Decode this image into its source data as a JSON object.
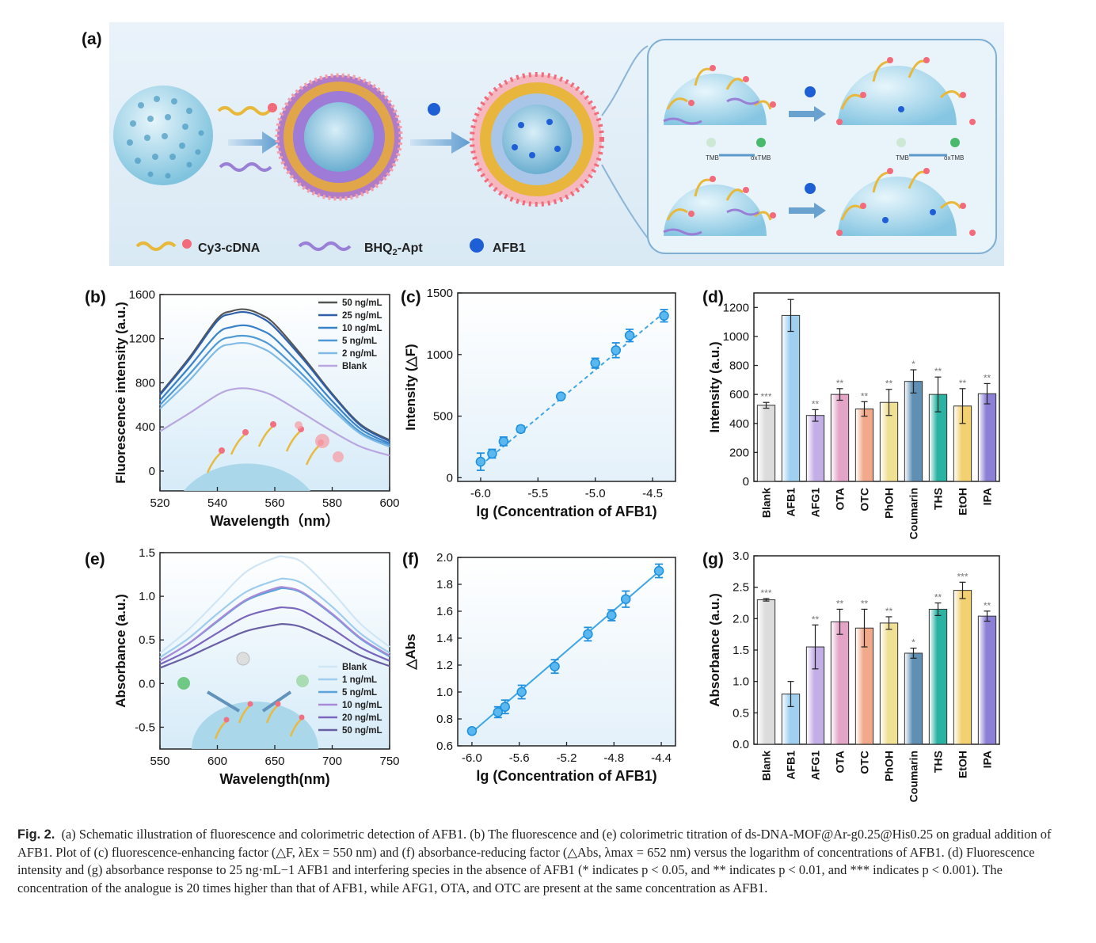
{
  "figure": {
    "panel_labels": {
      "a": "(a)",
      "b": "(b)",
      "c": "(c)",
      "d": "(d)",
      "e": "(e)",
      "f": "(f)",
      "g": "(g)"
    },
    "schematic": {
      "legend": [
        "Cy3-cDNA",
        "BHQ",
        "2",
        "-Apt",
        "AFB1"
      ],
      "tmb_labels": [
        "TMB",
        "oxTMB",
        "TMB",
        "oxTMB"
      ]
    },
    "colors": {
      "schematic_bg": "#e3eef6",
      "bubble": "#7ec3df",
      "bubble_dark": "#3f8fb8",
      "cdna": "#e8b83a",
      "apt": "#9a7fd6",
      "fluor": "#f26b7a",
      "afb1": "#1f5fd6",
      "line_blue": "#3ea6e6",
      "err": "#1e90e0"
    },
    "caption": {
      "label": "Fig. 2.",
      "text": "(a) Schematic illustration of fluorescence and colorimetric detection of AFB1. (b) The fluorescence and (e) colorimetric titration of ds-DNA-MOF@Ar-g0.25@His0.25 on gradual addition of AFB1. Plot of (c) fluorescence-enhancing factor (△F, λEx = 550 nm) and (f) absorbance-reducing factor (△Abs, λmax = 652 nm) versus the logarithm of concentrations of AFB1. (d) Fluorescence intensity and (g) absorbance response to 25 ng·mL−1 AFB1 and interfering species in the absence of AFB1 (* indicates p < 0.05, and ** indicates p < 0.01, and *** indicates p < 0.001). The concentration of the analogue is 20 times higher than that of AFB1, while AFG1, OTA, and OTC are present at the same concentration as AFB1."
    }
  },
  "chart_data": [
    {
      "id": "b",
      "type": "line",
      "xlabel": "Wavelength（nm）",
      "ylabel": "Fluorescence intensity (a.u.)",
      "xlim": [
        520,
        600
      ],
      "ylim": [
        -180,
        1600
      ],
      "xticks": [
        "520",
        "540",
        "560",
        "580",
        "600"
      ],
      "yticks": [
        "0",
        "400",
        "800",
        "1200",
        "1600"
      ],
      "x": [
        520,
        530,
        540,
        545,
        550,
        555,
        560,
        570,
        580,
        590,
        600
      ],
      "series": [
        {
          "name": "50 ng/mL",
          "color": "#555555",
          "values": [
            700,
            1020,
            1380,
            1450,
            1465,
            1420,
            1330,
            1030,
            700,
            420,
            280
          ]
        },
        {
          "name": "25 ng/mL",
          "color": "#2f5fa8",
          "values": [
            690,
            1005,
            1360,
            1425,
            1440,
            1395,
            1300,
            1010,
            690,
            410,
            270
          ]
        },
        {
          "name": "10 ng/mL",
          "color": "#3a82c7",
          "values": [
            640,
            935,
            1245,
            1305,
            1320,
            1280,
            1200,
            930,
            635,
            380,
            250
          ]
        },
        {
          "name": "5 ng/mL",
          "color": "#4f9ad6",
          "values": [
            600,
            870,
            1160,
            1215,
            1225,
            1190,
            1110,
            865,
            590,
            350,
            235
          ]
        },
        {
          "name": "2 ng/mL",
          "color": "#7fbbe6",
          "values": [
            565,
            815,
            1100,
            1150,
            1160,
            1120,
            1045,
            820,
            560,
            335,
            220
          ]
        },
        {
          "name": "Blank",
          "color": "#b9a6e0",
          "values": [
            360,
            520,
            690,
            740,
            750,
            725,
            675,
            520,
            360,
            220,
            140
          ]
        }
      ]
    },
    {
      "id": "c",
      "type": "scatter",
      "xlabel": "lg (Concentration of AFB1)",
      "ylabel": "Intensity (△F)",
      "xlim": [
        -6.2,
        -4.3
      ],
      "ylim": [
        -30,
        1500
      ],
      "xticks": [
        "-6.0",
        "-5.5",
        "-5.0",
        "-4.5"
      ],
      "yticks": [
        "0",
        "500",
        "1000",
        "1500"
      ],
      "x": [
        -6.0,
        -5.9,
        -5.8,
        -5.65,
        -5.3,
        -5.0,
        -4.82,
        -4.7,
        -4.4
      ],
      "values": [
        130,
        195,
        295,
        395,
        660,
        930,
        1035,
        1155,
        1315
      ],
      "errors": [
        70,
        35,
        35,
        25,
        15,
        40,
        60,
        50,
        50
      ],
      "fit": [
        [
          -6.0,
          100
        ],
        [
          -4.4,
          1340
        ]
      ]
    },
    {
      "id": "d",
      "type": "bar",
      "ylabel": "Intensity (a.u.)",
      "ylim": [
        0,
        1300
      ],
      "yticks": [
        "0",
        "200",
        "400",
        "600",
        "800",
        "1000",
        "1200"
      ],
      "categories": [
        "Blank",
        "AFB1",
        "AFG1",
        "OTA",
        "OTC",
        "PhOH",
        "Coumarin",
        "THS",
        "EtOH",
        "IPA"
      ],
      "values": [
        525,
        1145,
        455,
        600,
        500,
        545,
        690,
        600,
        520,
        605
      ],
      "errors": [
        20,
        110,
        40,
        40,
        50,
        90,
        80,
        120,
        120,
        70
      ],
      "significance": [
        "***",
        "",
        "**",
        "**",
        "**",
        "**",
        "*",
        "**",
        "**",
        "**"
      ],
      "colors": [
        "#dcdcdc",
        "#9fd0f0",
        "#c4aee6",
        "#e3a4c7",
        "#f0a98a",
        "#f0e094",
        "#5f8fb3",
        "#2ab2a2",
        "#f3d070",
        "#8b7fd6"
      ]
    },
    {
      "id": "e",
      "type": "line",
      "xlabel": "Wavelength(nm)",
      "ylabel": "Absorbance (a.u.)",
      "xlim": [
        550,
        750
      ],
      "ylim": [
        -0.75,
        1.5
      ],
      "xticks": [
        "550",
        "600",
        "650",
        "700",
        "750"
      ],
      "yticks": [
        "-0.5",
        "0.0",
        "0.5",
        "1.0",
        "1.5"
      ],
      "x": [
        550,
        575,
        600,
        625,
        650,
        660,
        675,
        700,
        725,
        750
      ],
      "series": [
        {
          "name": "Blank",
          "color": "#cfe6f7",
          "values": [
            0.35,
            0.62,
            0.95,
            1.28,
            1.44,
            1.45,
            1.38,
            1.05,
            0.68,
            0.42
          ]
        },
        {
          "name": "1 ng/mL",
          "color": "#9fcdee",
          "values": [
            0.3,
            0.52,
            0.8,
            1.05,
            1.18,
            1.2,
            1.14,
            0.88,
            0.57,
            0.35
          ]
        },
        {
          "name": "5 ng/mL",
          "color": "#5aa3dd",
          "values": [
            0.26,
            0.46,
            0.71,
            0.95,
            1.07,
            1.09,
            1.03,
            0.79,
            0.51,
            0.31
          ]
        },
        {
          "name": "10 ng/mL",
          "color": "#a98ad8",
          "values": [
            0.26,
            0.46,
            0.72,
            0.96,
            1.09,
            1.1,
            1.04,
            0.8,
            0.52,
            0.32
          ]
        },
        {
          "name": "20 ng/mL",
          "color": "#7b66bf",
          "values": [
            0.22,
            0.38,
            0.58,
            0.77,
            0.86,
            0.87,
            0.83,
            0.63,
            0.41,
            0.26
          ]
        },
        {
          "name": "50 ng/mL",
          "color": "#6a5fa5",
          "values": [
            0.18,
            0.31,
            0.46,
            0.6,
            0.67,
            0.68,
            0.64,
            0.49,
            0.32,
            0.2
          ]
        }
      ]
    },
    {
      "id": "f",
      "type": "scatter",
      "xlabel": "lg (Concentration of AFB1)",
      "ylabel": "△Abs",
      "xlim": [
        -6.12,
        -4.28
      ],
      "ylim": [
        0.6,
        2.0
      ],
      "xticks": [
        "-6.0",
        "-5.6",
        "-5.2",
        "-4.8",
        "-4.4"
      ],
      "yticks": [
        "0.6",
        "0.8",
        "1.0",
        "1.2",
        "1.4",
        "1.6",
        "1.8",
        "2.0"
      ],
      "x": [
        -6.0,
        -5.78,
        -5.72,
        -5.58,
        -5.3,
        -5.02,
        -4.82,
        -4.7,
        -4.42
      ],
      "values": [
        0.71,
        0.85,
        0.89,
        1.0,
        1.19,
        1.43,
        1.57,
        1.69,
        1.9
      ],
      "errors": [
        0.02,
        0.04,
        0.05,
        0.05,
        0.05,
        0.05,
        0.04,
        0.06,
        0.05
      ],
      "fit": [
        [
          -6.0,
          0.7
        ],
        [
          -4.4,
          1.91
        ]
      ]
    },
    {
      "id": "g",
      "type": "bar",
      "ylabel": "Absorbance (a.u.)",
      "ylim": [
        0,
        3.0
      ],
      "yticks": [
        "0.0",
        "0.5",
        "1.0",
        "1.5",
        "2.0",
        "2.5",
        "3.0"
      ],
      "categories": [
        "Blank",
        "AFB1",
        "AFG1",
        "OTA",
        "OTC",
        "PhOH",
        "Coumarin",
        "THS",
        "EtOH",
        "IPA"
      ],
      "values": [
        2.3,
        0.8,
        1.55,
        1.95,
        1.85,
        1.93,
        1.45,
        2.15,
        2.45,
        2.04
      ],
      "errors": [
        0.02,
        0.2,
        0.35,
        0.2,
        0.3,
        0.1,
        0.08,
        0.1,
        0.13,
        0.08
      ],
      "significance": [
        "***",
        "",
        "**",
        "**",
        "**",
        "**",
        "*",
        "**",
        "***",
        "**"
      ],
      "colors": [
        "#dcdcdc",
        "#9fd0f0",
        "#c4aee6",
        "#e3a4c7",
        "#f0a98a",
        "#f0e094",
        "#5f8fb3",
        "#2ab2a2",
        "#f3d070",
        "#8b7fd6"
      ]
    }
  ]
}
